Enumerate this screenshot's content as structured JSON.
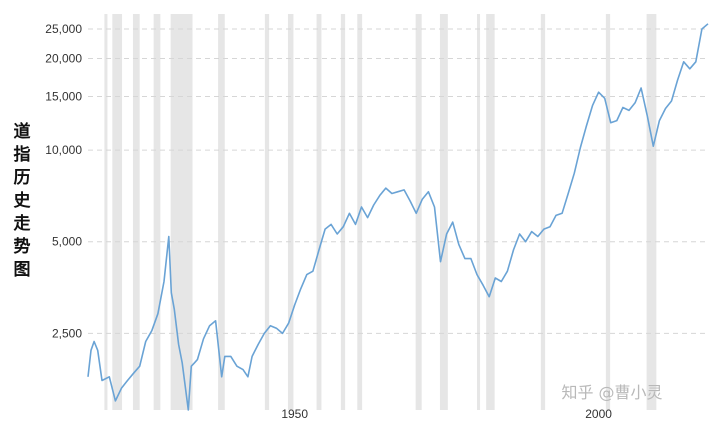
{
  "chart_data": {
    "type": "line",
    "title": "",
    "ylabel": "道指历史走势图",
    "xlabel": "",
    "y_scale": "log",
    "ylim": [
      1400,
      28000
    ],
    "xlim": [
      1916,
      2018
    ],
    "yticks": [
      {
        "value": 2500,
        "label": "2,500"
      },
      {
        "value": 5000,
        "label": "5,000"
      },
      {
        "value": 10000,
        "label": "10,000"
      },
      {
        "value": 15000,
        "label": "15,000"
      },
      {
        "value": 20000,
        "label": "20,000"
      },
      {
        "value": 25000,
        "label": "25,000"
      }
    ],
    "xticks": [
      {
        "value": 1950,
        "label": "1950"
      },
      {
        "value": 2000,
        "label": "2000"
      }
    ],
    "grid": "horizontal dashed",
    "line_color": "#6aa3d5",
    "recession_color": "#e6e6e6",
    "recessions": [
      [
        1918.7,
        1919.2
      ],
      [
        1920.0,
        1921.6
      ],
      [
        1923.4,
        1924.5
      ],
      [
        1926.8,
        1927.9
      ],
      [
        1929.6,
        1933.2
      ],
      [
        1937.4,
        1938.5
      ],
      [
        1945.1,
        1945.8
      ],
      [
        1948.9,
        1949.8
      ],
      [
        1953.6,
        1954.4
      ],
      [
        1957.6,
        1958.3
      ],
      [
        1960.3,
        1961.1
      ],
      [
        1969.9,
        1970.9
      ],
      [
        1973.9,
        1975.2
      ],
      [
        1980.0,
        1980.5
      ],
      [
        1981.5,
        1982.9
      ],
      [
        1990.5,
        1991.2
      ],
      [
        2001.2,
        2001.9
      ],
      [
        2007.9,
        2009.5
      ]
    ],
    "series": [
      {
        "x": [
          1916,
          1916.5,
          1917,
          1917.6,
          1918.3,
          1919.5,
          1920.5,
          1921.5,
          1922.5,
          1923.5,
          1924.5,
          1925.5,
          1926.5,
          1927.5,
          1928.5,
          1929.3,
          1929.7,
          1930.2,
          1930.9,
          1931.5,
          1932.5,
          1933,
          1933.5,
          1934,
          1935,
          1936,
          1937,
          1938,
          1938.5,
          1939.5,
          1940.5,
          1941.5,
          1942.3,
          1943,
          1944,
          1945,
          1946,
          1947,
          1948,
          1949,
          1950,
          1951,
          1952,
          1953,
          1954,
          1955,
          1956,
          1957,
          1958,
          1959,
          1960,
          1961,
          1962,
          1963,
          1964,
          1965,
          1966,
          1967,
          1968,
          1969,
          1970,
          1971,
          1972,
          1973,
          1974,
          1975,
          1976,
          1977,
          1978,
          1979,
          1980,
          1981,
          1982,
          1983,
          1984,
          1985,
          1986,
          1987,
          1988,
          1989,
          1990,
          1991,
          1992,
          1993,
          1994,
          1995,
          1996,
          1997,
          1998,
          1999,
          2000,
          2001,
          2002,
          2003,
          2004,
          2005,
          2006,
          2007,
          2008,
          2009,
          2010,
          2011,
          2012,
          2013,
          2014,
          2015,
          2016,
          2017,
          2018
        ],
        "y": [
          1800,
          2200,
          2350,
          2200,
          1750,
          1800,
          1500,
          1650,
          1750,
          1850,
          1950,
          2350,
          2550,
          2900,
          3700,
          5200,
          3400,
          3000,
          2300,
          2000,
          1400,
          1950,
          2000,
          2050,
          2400,
          2650,
          2750,
          1800,
          2100,
          2100,
          1950,
          1900,
          1800,
          2100,
          2300,
          2500,
          2650,
          2600,
          2500,
          2700,
          3100,
          3500,
          3900,
          4000,
          4700,
          5500,
          5700,
          5300,
          5600,
          6200,
          5700,
          6500,
          6000,
          6600,
          7100,
          7500,
          7200,
          7300,
          7400,
          6800,
          6200,
          6900,
          7300,
          6500,
          4300,
          5300,
          5800,
          4900,
          4400,
          4400,
          3900,
          3600,
          3300,
          3800,
          3700,
          4000,
          4700,
          5300,
          5000,
          5400,
          5200,
          5500,
          5600,
          6100,
          6200,
          7200,
          8400,
          10200,
          12000,
          14000,
          15500,
          14800,
          12300,
          12500,
          13800,
          13500,
          14300,
          16000,
          13000,
          10300,
          12500,
          13700,
          14500,
          17000,
          19500,
          18500,
          19500,
          25000,
          26000
        ]
      }
    ],
    "watermark": "知乎 @曹小灵"
  }
}
